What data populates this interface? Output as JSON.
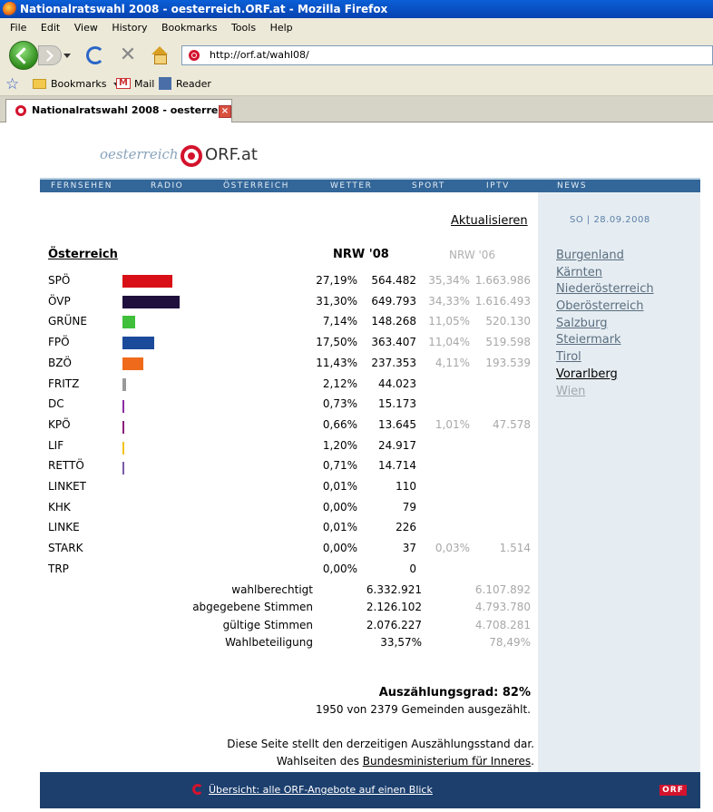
{
  "window": {
    "title": "Nationalratswahl 2008 - oesterreich.ORF.at - Mozilla Firefox"
  },
  "menu": [
    "File",
    "Edit",
    "View",
    "History",
    "Bookmarks",
    "Tools",
    "Help"
  ],
  "url": "http://orf.at/wahl08/",
  "bookmarks": {
    "folder": "Bookmarks",
    "mail": "Mail",
    "reader": "Reader"
  },
  "tab": {
    "title": "Nationalratswahl 2008 - oesterre..."
  },
  "site": {
    "logo_prefix": "oesterreich",
    "logo_orf": "ORF.at",
    "nav": [
      "FERNSEHEN",
      "RADIO",
      "ÖSTERREICH",
      "WETTER",
      "SPORT",
      "IPTV",
      "NEWS"
    ],
    "refresh": "Aktualisieren",
    "date": "SO | 28.09.2008"
  },
  "results": {
    "title": "Österreich",
    "col08": "NRW '08",
    "col06": "NRW '06",
    "rows": [
      {
        "party": "SPÖ",
        "pct08": "27,19%",
        "votes08": "564.482",
        "pct06": "35,34%",
        "votes06": "1.663.986",
        "share": 27.19,
        "color": "#d80f16"
      },
      {
        "party": "ÖVP",
        "pct08": "31,30%",
        "votes08": "649.793",
        "pct06": "34,33%",
        "votes06": "1.616.493",
        "share": 31.3,
        "color": "#1f0f3d"
      },
      {
        "party": "GRÜNE",
        "pct08": "7,14%",
        "votes08": "148.268",
        "pct06": "11,05%",
        "votes06": "520.130",
        "share": 7.14,
        "color": "#3fbf3a"
      },
      {
        "party": "FPÖ",
        "pct08": "17,50%",
        "votes08": "363.407",
        "pct06": "11,04%",
        "votes06": "519.598",
        "share": 17.5,
        "color": "#1b4a9a"
      },
      {
        "party": "BZÖ",
        "pct08": "11,43%",
        "votes08": "237.353",
        "pct06": "4,11%",
        "votes06": "193.539",
        "share": 11.43,
        "color": "#f06a1c"
      },
      {
        "party": "FRITZ",
        "pct08": "2,12%",
        "votes08": "44.023",
        "pct06": "",
        "votes06": "",
        "share": 2.12,
        "color": "#9a9a9a"
      },
      {
        "party": "DC",
        "pct08": "0,73%",
        "votes08": "15.173",
        "pct06": "",
        "votes06": "",
        "share": 0.73,
        "color": "#8a2da0"
      },
      {
        "party": "KPÖ",
        "pct08": "0,66%",
        "votes08": "13.645",
        "pct06": "1,01%",
        "votes06": "47.578",
        "share": 0.66,
        "color": "#8a1f7a"
      },
      {
        "party": "LIF",
        "pct08": "1,20%",
        "votes08": "24.917",
        "pct06": "",
        "votes06": "",
        "share": 1.2,
        "color": "#f2c21b"
      },
      {
        "party": "RETTÖ",
        "pct08": "0,71%",
        "votes08": "14.714",
        "pct06": "",
        "votes06": "",
        "share": 0.71,
        "color": "#7a5aa8"
      },
      {
        "party": "LINKET",
        "pct08": "0,01%",
        "votes08": "110",
        "pct06": "",
        "votes06": "",
        "share": 0.01,
        "color": "#999999"
      },
      {
        "party": "KHK",
        "pct08": "0,00%",
        "votes08": "79",
        "pct06": "",
        "votes06": "",
        "share": 0.0,
        "color": "#999999"
      },
      {
        "party": "LINKE",
        "pct08": "0,01%",
        "votes08": "226",
        "pct06": "",
        "votes06": "",
        "share": 0.01,
        "color": "#999999"
      },
      {
        "party": "STARK",
        "pct08": "0,00%",
        "votes08": "37",
        "pct06": "0,03%",
        "votes06": "1.514",
        "share": 0.0,
        "color": "#999999"
      },
      {
        "party": "TRP",
        "pct08": "0,00%",
        "votes08": "0",
        "pct06": "",
        "votes06": "",
        "share": 0.0,
        "color": "#999999"
      }
    ],
    "stats": [
      {
        "label": "wahlberechtigt",
        "v08": "6.332.921",
        "v06": "6.107.892"
      },
      {
        "label": "abgegebene Stimmen",
        "v08": "2.126.102",
        "v06": "4.793.780"
      },
      {
        "label": "gültige Stimmen",
        "v08": "2.076.227",
        "v06": "4.708.281"
      },
      {
        "label": "Wahlbeteiligung",
        "v08": "33,57%",
        "v06": "78,49%"
      }
    ],
    "grad": "Auszählungsgrad: 82%",
    "gemeinden": "1950 von 2379 Gemeinden ausgezählt.",
    "note1": "Diese Seite stellt den derzeitigen Auszählungsstand dar.",
    "note2_prefix": "Wahlseiten des ",
    "note2_link": "Bundesministerium für Inneres",
    "note2_suffix": "."
  },
  "regions": [
    {
      "name": "Burgenland",
      "state": "normal"
    },
    {
      "name": "Kärnten",
      "state": "normal"
    },
    {
      "name": "Niederösterreich",
      "state": "normal"
    },
    {
      "name": "Oberösterreich",
      "state": "normal"
    },
    {
      "name": "Salzburg",
      "state": "normal"
    },
    {
      "name": "Steiermark",
      "state": "normal"
    },
    {
      "name": "Tirol",
      "state": "normal"
    },
    {
      "name": "Vorarlberg",
      "state": "active"
    },
    {
      "name": "Wien",
      "state": "dim"
    }
  ],
  "footer": {
    "link": "Übersicht: alle ORF-Angebote auf einen Blick",
    "badge": "ORF"
  }
}
